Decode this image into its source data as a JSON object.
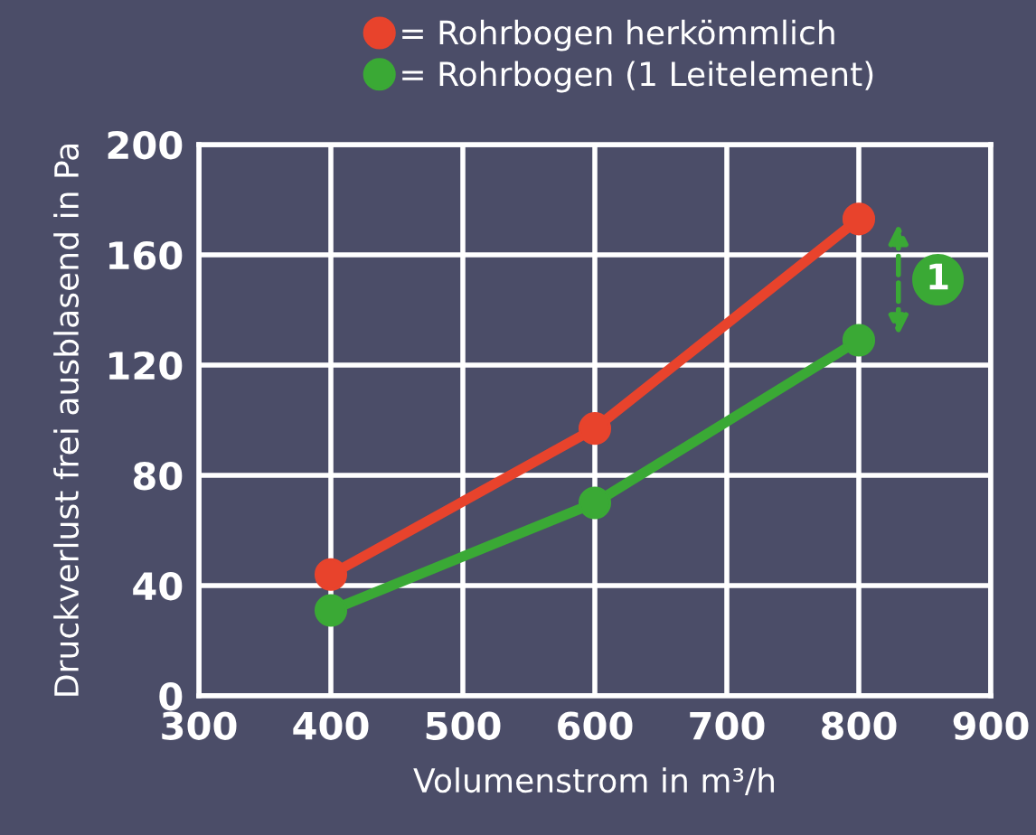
{
  "chart_data": {
    "type": "line",
    "xlabel": "Volumenstrom in m³/h",
    "ylabel": "Druckverlust frei ausblasend in Pa",
    "x": [
      400,
      600,
      800
    ],
    "series": [
      {
        "name": "= Rohrbogen herkömmlich",
        "color": "#e8432c",
        "values": [
          44,
          97,
          173
        ]
      },
      {
        "name": "= Rohrbogen (1 Leitelement)",
        "color": "#3aa935",
        "values": [
          31,
          70,
          129
        ]
      }
    ],
    "xlim": [
      300,
      900
    ],
    "xticks": [
      300,
      400,
      500,
      600,
      700,
      800,
      900
    ],
    "ylim": [
      0,
      200
    ],
    "yticks": [
      0,
      40,
      80,
      120,
      160,
      200
    ],
    "grid": true,
    "legend": "top left",
    "marker": "circle",
    "line_style": "solid",
    "annotations": [
      {
        "text": "1",
        "x": 860,
        "y": 151
      }
    ]
  }
}
